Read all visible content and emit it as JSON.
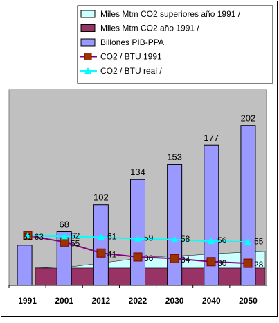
{
  "chart_data": {
    "type": "bar",
    "categories": [
      "1991",
      "2001",
      "2012",
      "2022",
      "2030",
      "2040",
      "2050"
    ],
    "ylim": [
      0,
      250
    ],
    "grid": false,
    "legend_position": "top",
    "series": [
      {
        "name": "Miles Mtm CO2 superiores año 1991 /",
        "type": "area",
        "color": "#ccffff",
        "values": [
          0,
          2,
          8,
          14,
          16,
          19,
          21
        ],
        "labels": []
      },
      {
        "name": "Miles  Mtm CO2 año 1991 /",
        "type": "area",
        "color": "#993366",
        "values": [
          22,
          22,
          22,
          22,
          22,
          22,
          22
        ],
        "labels": []
      },
      {
        "name": "Billones PIB-PPA",
        "type": "bar",
        "color": "#9999ff",
        "values": [
          51,
          68,
          102,
          134,
          153,
          177,
          202
        ],
        "labels": [
          "",
          "68",
          "102",
          "134",
          "153",
          "177",
          "202"
        ]
      },
      {
        "name": "CO2 / BTU 1991",
        "type": "line",
        "color": "#800080",
        "marker": "square",
        "marker_color": "#993300",
        "values": [
          63,
          55,
          41,
          36,
          34,
          30,
          28
        ],
        "labels": [
          "51 63",
          "55",
          "41",
          "36",
          "34",
          "30",
          "28"
        ]
      },
      {
        "name": "CO2 / BTU real /",
        "type": "line",
        "color": "#00ffff",
        "marker": "triangle",
        "marker_color": "#00ffff",
        "values": [
          63,
          62,
          61,
          59,
          58,
          56,
          55
        ],
        "labels": [
          "",
          "62",
          "61",
          "59",
          "58",
          "56",
          "55"
        ]
      }
    ]
  }
}
